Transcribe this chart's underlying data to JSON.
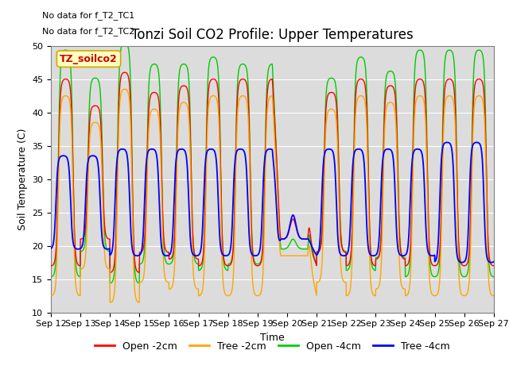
{
  "title": "Tonzi Soil CO2 Profile: Upper Temperatures",
  "ylabel": "Soil Temperature (C)",
  "xlabel": "Time",
  "ylim": [
    10,
    50
  ],
  "xtick_labels": [
    "Sep 12",
    "Sep 13",
    "Sep 14",
    "Sep 15",
    "Sep 16",
    "Sep 17",
    "Sep 18",
    "Sep 19",
    "Sep 20",
    "Sep 21",
    "Sep 22",
    "Sep 23",
    "Sep 24",
    "Sep 25",
    "Sep 26",
    "Sep 27"
  ],
  "ytick_labels": [
    "10",
    "15",
    "20",
    "25",
    "30",
    "35",
    "40",
    "45",
    "50"
  ],
  "bg_color": "#dcdcdc",
  "fig_color": "#ffffff",
  "line_colors": {
    "open_2cm": "#ff0000",
    "tree_2cm": "#ffa500",
    "open_4cm": "#00cc00",
    "tree_4cm": "#0000ff"
  },
  "legend_labels": [
    "Open -2cm",
    "Tree -2cm",
    "Open -4cm",
    "Tree -4cm"
  ],
  "annotation_box_text": "TZ_soilco2",
  "annotation_box_color": "#ffffc0",
  "annotation_box_edge": "#ccaa00",
  "nodata_text1": "No data for f_T2_TC1",
  "nodata_text2": "No data for f_T2_TC2",
  "title_fontsize": 12,
  "label_fontsize": 9,
  "tick_fontsize": 8,
  "legend_fontsize": 9
}
